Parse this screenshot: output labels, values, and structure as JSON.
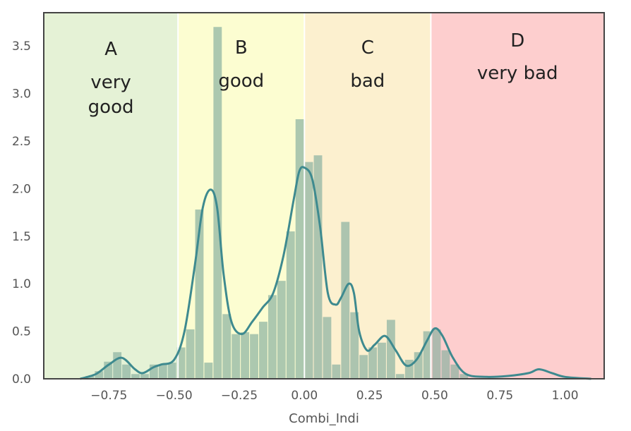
{
  "chart_data": {
    "type": "bar",
    "title": "",
    "xlabel": "Combi_Indi",
    "ylabel": "",
    "xlim": [
      -1.0,
      1.15
    ],
    "ylim": [
      0,
      3.85
    ],
    "xticks": [
      -0.75,
      -0.5,
      -0.25,
      0.0,
      0.25,
      0.5,
      0.75,
      1.0
    ],
    "xtick_labels": [
      "−0.75",
      "−0.50",
      "−0.25",
      "0.00",
      "0.25",
      "0.50",
      "0.75",
      "1.00"
    ],
    "yticks": [
      0.0,
      0.5,
      1.0,
      1.5,
      2.0,
      2.5,
      3.0,
      3.5
    ],
    "ytick_labels": [
      "0.0",
      "0.5",
      "1.0",
      "1.5",
      "2.0",
      "2.5",
      "3.0",
      "3.5"
    ],
    "grid": false,
    "histogram": {
      "bin_width": 0.0348,
      "bins": [
        {
          "x": -0.858,
          "density": 0.0
        },
        {
          "x": -0.823,
          "density": 0.03
        },
        {
          "x": -0.788,
          "density": 0.08
        },
        {
          "x": -0.753,
          "density": 0.18
        },
        {
          "x": -0.718,
          "density": 0.28
        },
        {
          "x": -0.683,
          "density": 0.15
        },
        {
          "x": -0.648,
          "density": 0.05
        },
        {
          "x": -0.613,
          "density": 0.05
        },
        {
          "x": -0.578,
          "density": 0.15
        },
        {
          "x": -0.543,
          "density": 0.15
        },
        {
          "x": -0.508,
          "density": 0.17
        },
        {
          "x": -0.473,
          "density": 0.33
        },
        {
          "x": -0.438,
          "density": 0.52
        },
        {
          "x": -0.403,
          "density": 1.78
        },
        {
          "x": -0.368,
          "density": 0.17
        },
        {
          "x": -0.333,
          "density": 3.7
        },
        {
          "x": -0.298,
          "density": 0.68
        },
        {
          "x": -0.263,
          "density": 0.47
        },
        {
          "x": -0.228,
          "density": 0.49
        },
        {
          "x": -0.193,
          "density": 0.47
        },
        {
          "x": -0.158,
          "density": 0.6
        },
        {
          "x": -0.123,
          "density": 0.88
        },
        {
          "x": -0.088,
          "density": 1.03
        },
        {
          "x": -0.053,
          "density": 1.55
        },
        {
          "x": -0.018,
          "density": 2.73
        },
        {
          "x": 0.017,
          "density": 2.28
        },
        {
          "x": 0.052,
          "density": 2.35
        },
        {
          "x": 0.087,
          "density": 0.65
        },
        {
          "x": 0.122,
          "density": 0.15
        },
        {
          "x": 0.157,
          "density": 1.65
        },
        {
          "x": 0.192,
          "density": 0.7
        },
        {
          "x": 0.227,
          "density": 0.25
        },
        {
          "x": 0.262,
          "density": 0.33
        },
        {
          "x": 0.297,
          "density": 0.38
        },
        {
          "x": 0.332,
          "density": 0.62
        },
        {
          "x": 0.367,
          "density": 0.05
        },
        {
          "x": 0.402,
          "density": 0.2
        },
        {
          "x": 0.437,
          "density": 0.28
        },
        {
          "x": 0.472,
          "density": 0.5
        },
        {
          "x": 0.507,
          "density": 0.52
        },
        {
          "x": 0.542,
          "density": 0.3
        },
        {
          "x": 0.577,
          "density": 0.15
        },
        {
          "x": 0.612,
          "density": 0.05
        }
      ]
    },
    "kde": {
      "x": [
        -0.86,
        -0.8,
        -0.75,
        -0.7,
        -0.65,
        -0.62,
        -0.58,
        -0.55,
        -0.5,
        -0.46,
        -0.42,
        -0.39,
        -0.36,
        -0.335,
        -0.31,
        -0.28,
        -0.24,
        -0.2,
        -0.16,
        -0.12,
        -0.08,
        -0.04,
        -0.02,
        0.0,
        0.03,
        0.06,
        0.09,
        0.12,
        0.14,
        0.17,
        0.19,
        0.21,
        0.24,
        0.27,
        0.31,
        0.35,
        0.39,
        0.43,
        0.47,
        0.5,
        0.53,
        0.57,
        0.62,
        0.7,
        0.78,
        0.86,
        0.9,
        0.95,
        1.0,
        1.1
      ],
      "y": [
        0.0,
        0.05,
        0.15,
        0.22,
        0.1,
        0.06,
        0.12,
        0.15,
        0.2,
        0.5,
        1.2,
        1.8,
        1.99,
        1.8,
        1.1,
        0.6,
        0.47,
        0.6,
        0.75,
        0.9,
        1.3,
        1.9,
        2.18,
        2.22,
        2.1,
        1.6,
        0.9,
        0.78,
        0.85,
        1.0,
        0.9,
        0.5,
        0.3,
        0.36,
        0.45,
        0.3,
        0.14,
        0.2,
        0.4,
        0.53,
        0.45,
        0.22,
        0.05,
        0.02,
        0.03,
        0.06,
        0.1,
        0.06,
        0.02,
        0.0
      ]
    },
    "zones": [
      {
        "id": "A",
        "letter": "A",
        "label_lines": [
          "very",
          "good"
        ],
        "x_range": [
          -1.0,
          -0.485
        ],
        "color": "#e5f2d6"
      },
      {
        "id": "B",
        "letter": "B",
        "label_lines": [
          "good"
        ],
        "x_range": [
          -0.485,
          0.0
        ],
        "color": "#fcfdd1"
      },
      {
        "id": "C",
        "letter": "C",
        "label_lines": [
          "bad"
        ],
        "x_range": [
          0.0,
          0.485
        ],
        "color": "#fcf0cf"
      },
      {
        "id": "D",
        "letter": "D",
        "label_lines": [
          "very bad"
        ],
        "x_range": [
          0.485,
          1.15
        ],
        "color": "#fdcece"
      }
    ],
    "colors": {
      "bars": "#8eb3a2",
      "kde_line": "#3e8a8f",
      "kde_line_right": "#4f6f98",
      "frame": "#444444",
      "divider": "#ffffff"
    }
  }
}
